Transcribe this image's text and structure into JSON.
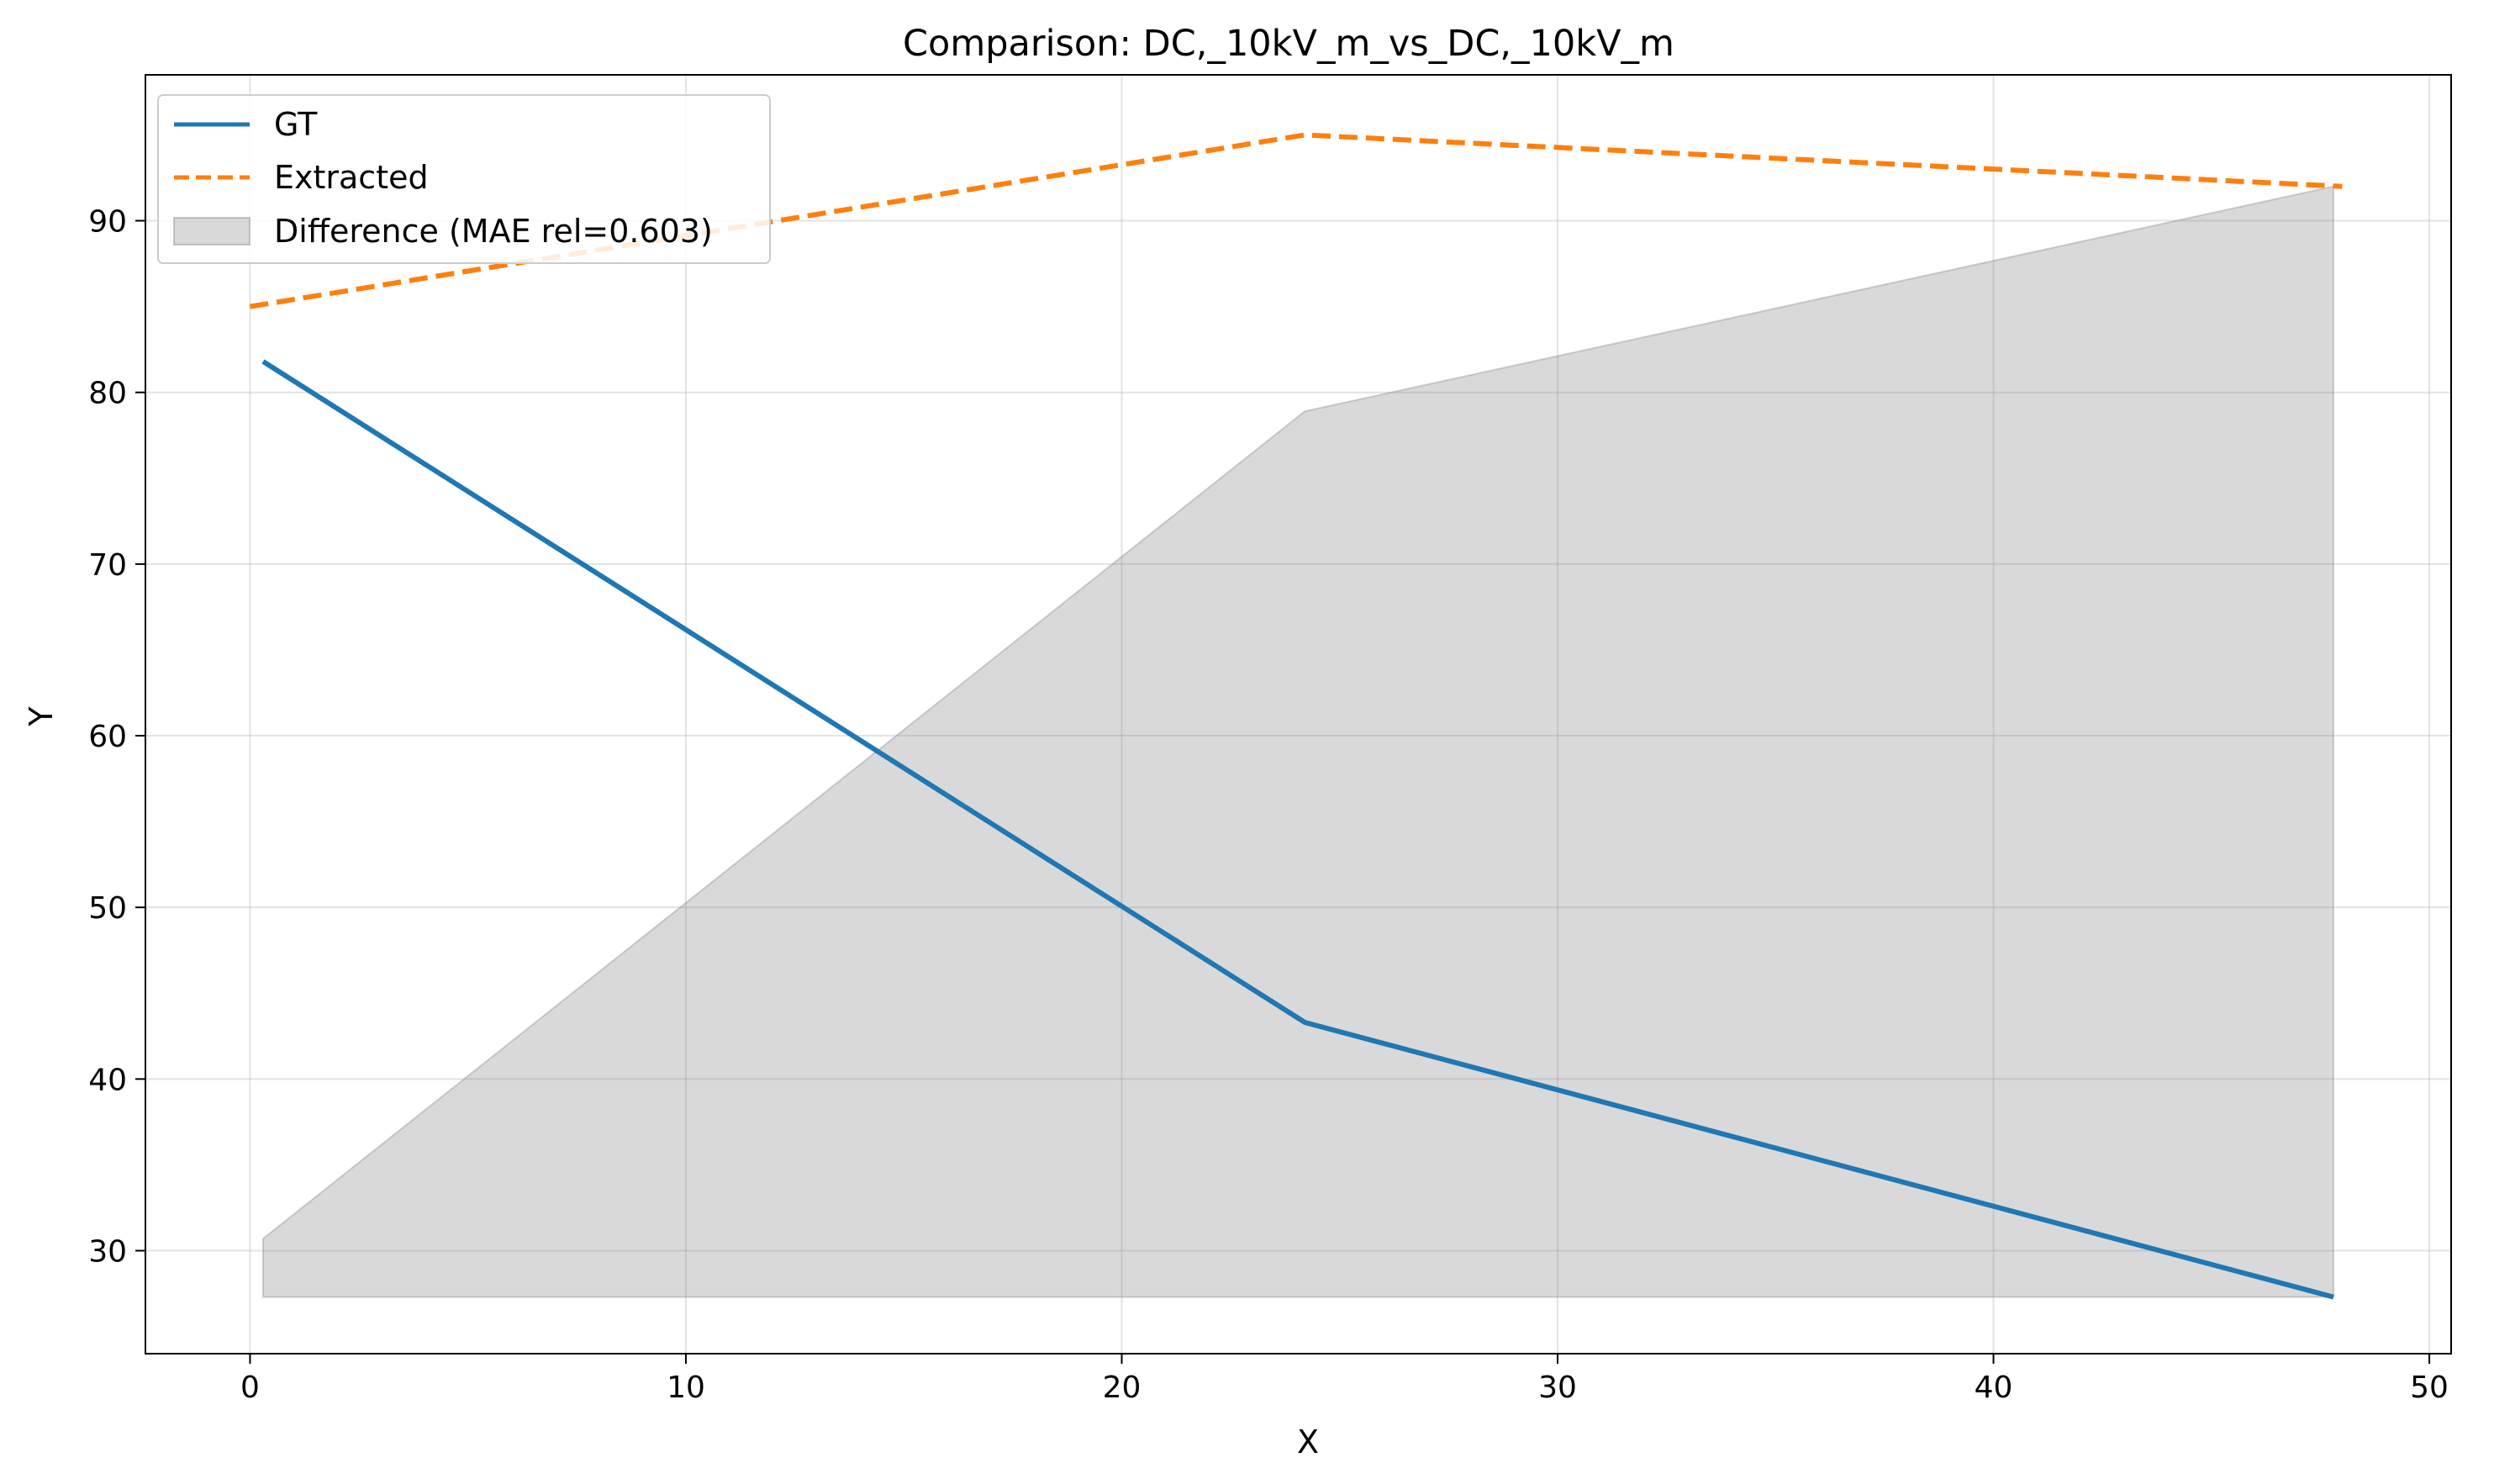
{
  "chart_data": {
    "type": "line",
    "title": "Comparison: DC,_10kV_m_vs_DC,_10kV_m",
    "xlabel": "X",
    "ylabel": "Y",
    "xlim": [
      -2.4,
      50.5
    ],
    "ylim": [
      24,
      98.5
    ],
    "xticks": [
      0,
      10,
      20,
      30,
      40,
      50
    ],
    "yticks": [
      30,
      40,
      50,
      60,
      70,
      80,
      90
    ],
    "grid": true,
    "legend_position": "top-left",
    "series": [
      {
        "name": "GT",
        "color": "#1f77b4",
        "style": "solid",
        "x": [
          0.3,
          24.2,
          47.8
        ],
        "y": [
          81.8,
          43.3,
          27.3
        ]
      },
      {
        "name": "Extracted",
        "color": "#ff7f0e",
        "style": "dashed",
        "x": [
          0.0,
          24.2,
          48.0
        ],
        "y": [
          85.0,
          95.0,
          92.0
        ]
      }
    ],
    "difference": {
      "name": "Difference (MAE rel=0.603)",
      "color": "#808080",
      "x": [
        0.3,
        24.2,
        47.8
      ],
      "upper": [
        30.7,
        78.9,
        92.0
      ],
      "lower": [
        27.3,
        27.3,
        27.3
      ]
    }
  }
}
